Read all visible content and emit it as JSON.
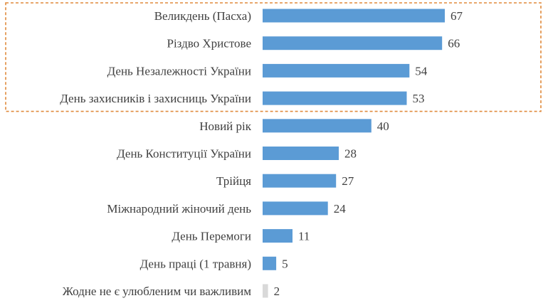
{
  "chart_data": {
    "type": "bar",
    "orientation": "horizontal",
    "categories": [
      "Великдень (Пасха)",
      "Різдво Христове",
      "День Незалежності України",
      "День захисників і захисниць України",
      "Новий рік",
      "День Конституції України",
      "Трійця",
      "Міжнародний жіночий день",
      "День Перемоги",
      "День праці (1 травня)",
      "Жодне не є улюбленим чи важливим"
    ],
    "values": [
      67,
      66,
      54,
      53,
      40,
      28,
      27,
      24,
      11,
      5,
      2
    ],
    "bar_colors": [
      "#5b9bd5",
      "#5b9bd5",
      "#5b9bd5",
      "#5b9bd5",
      "#5b9bd5",
      "#5b9bd5",
      "#5b9bd5",
      "#5b9bd5",
      "#5b9bd5",
      "#5b9bd5",
      "#d9d9d9"
    ],
    "value_label_colors": [
      "#404040",
      "#404040",
      "#404040",
      "#404040",
      "#404040",
      "#404040",
      "#404040",
      "#404040",
      "#404040",
      "#404040",
      "#8c8c8c"
    ],
    "highlight": {
      "categories_highlighted": 4,
      "style": "dashed",
      "color": "#e08a3c"
    },
    "title": "",
    "xlabel": "",
    "ylabel": "",
    "xlim": [
      0,
      67
    ],
    "grid": false,
    "legend": "none",
    "data_labels": true
  }
}
